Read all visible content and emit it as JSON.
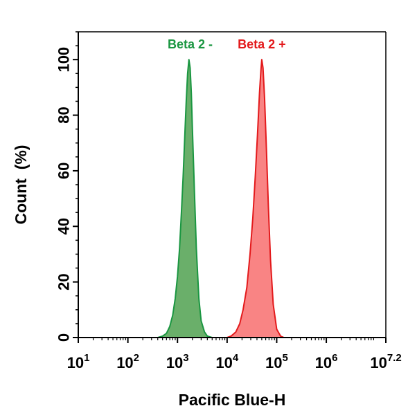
{
  "chart_data": {
    "type": "area",
    "xscale": "log",
    "xlim": [
      10,
      15848931.92
    ],
    "ylim": [
      0,
      110
    ],
    "xlabel": "Pacific Blue-H",
    "ylabel": "Count  (%)",
    "x_tick_labels": [
      {
        "x": 10,
        "base": "10",
        "exp": "1"
      },
      {
        "x": 100,
        "base": "10",
        "exp": "2"
      },
      {
        "x": 1000,
        "base": "10",
        "exp": "3"
      },
      {
        "x": 10000,
        "base": "10",
        "exp": "4"
      },
      {
        "x": 100000,
        "base": "10",
        "exp": "5"
      },
      {
        "x": 1000000,
        "base": "10",
        "exp": "6"
      },
      {
        "x": 15848931.92,
        "base": "10",
        "exp": "7.2"
      }
    ],
    "y_ticks": [
      0,
      20,
      40,
      60,
      80,
      100
    ],
    "y_tick_labels": [
      "0",
      "20",
      "40",
      "60",
      "80",
      "100"
    ],
    "grid": false,
    "series": [
      {
        "name": "Beta 2 -",
        "color": "#1a9641",
        "fill": "#6aaf6a",
        "x": [
          400,
          500,
          600,
          700,
          800,
          900,
          1000,
          1100,
          1200,
          1300,
          1400,
          1500,
          1600,
          1700,
          1800,
          1900,
          2000,
          2200,
          2400,
          2700,
          3000,
          3500,
          4000,
          5000
        ],
        "y": [
          0,
          0.5,
          1.5,
          4,
          8,
          14,
          22,
          32,
          45,
          58,
          72,
          85,
          95,
          100,
          97,
          88,
          75,
          52,
          32,
          14,
          6,
          2,
          0.5,
          0
        ]
      },
      {
        "name": "Beta 2 +",
        "color": "#e31a1c",
        "fill": "#f98484",
        "x": [
          10000,
          12000,
          15000,
          18000,
          21000,
          25000,
          29000,
          33000,
          37000,
          41000,
          45000,
          48000,
          50000,
          53000,
          57000,
          62000,
          68000,
          75000,
          85000,
          100000,
          120000,
          140000
        ],
        "y": [
          0,
          0.5,
          2,
          5,
          10,
          18,
          30,
          43,
          58,
          73,
          88,
          96,
          100,
          97,
          86,
          68,
          47,
          28,
          12,
          3,
          0.5,
          0
        ]
      }
    ],
    "annotations": [
      {
        "text": "Beta 2 -",
        "color": "#1a9641",
        "x": 1800,
        "y": 104
      },
      {
        "text": "Beta 2 +",
        "color": "#e31a1c",
        "x": 50000,
        "y": 104
      }
    ]
  }
}
